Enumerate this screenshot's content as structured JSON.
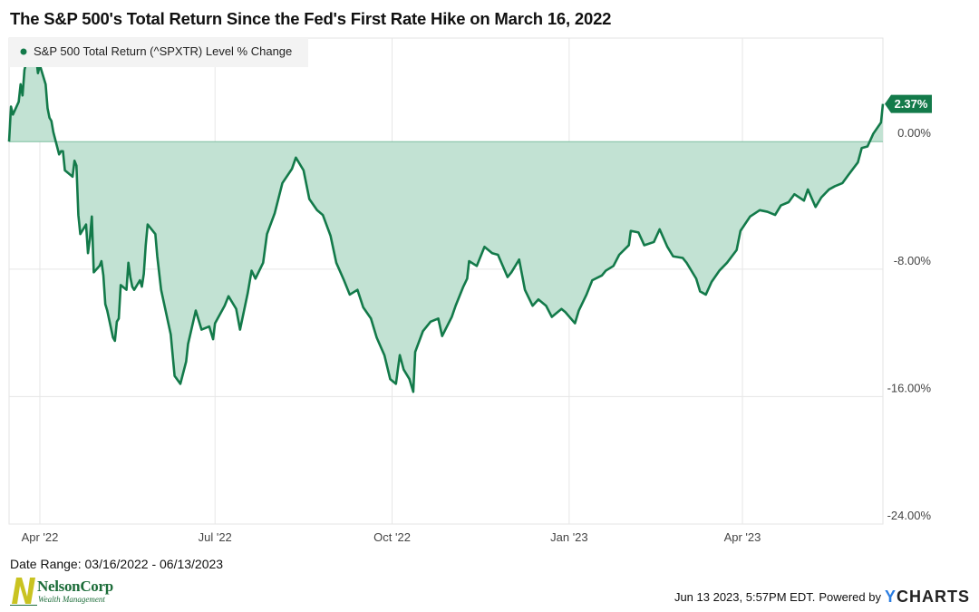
{
  "title": "The S&P 500's Total Return Since the Fed's First Rate Hike on March 16, 2022",
  "footer": {
    "date_range": "Date Range: 03/16/2022 - 06/13/2023",
    "timestamp": "Jun 13 2023, 5:57PM EDT.",
    "powered_by": "Powered by",
    "brand_y": "Y",
    "brand_rest": "CHARTS"
  },
  "logo": {
    "name": "NelsonCorp",
    "subtitle": "Wealth Management"
  },
  "colors": {
    "line": "#137a4a",
    "fill": "#c2e2d3",
    "grid": "#e6e6e6",
    "badge": "#137a4a"
  },
  "chart_data": {
    "type": "area",
    "title": "The S&P 500's Total Return Since the Fed's First Rate Hike on March 16, 2022",
    "series": [
      {
        "name": "S&P 500 Total Return (^SPXTR) Level % Change",
        "x": [
          "2022-03-16",
          "2022-03-17",
          "2022-03-18",
          "2022-03-21",
          "2022-03-22",
          "2022-03-23",
          "2022-03-24",
          "2022-03-25",
          "2022-03-28",
          "2022-03-29",
          "2022-03-30",
          "2022-03-31",
          "2022-04-01",
          "2022-04-04",
          "2022-04-05",
          "2022-04-06",
          "2022-04-07",
          "2022-04-08",
          "2022-04-11",
          "2022-04-12",
          "2022-04-13",
          "2022-04-14",
          "2022-04-18",
          "2022-04-19",
          "2022-04-20",
          "2022-04-21",
          "2022-04-22",
          "2022-04-25",
          "2022-04-26",
          "2022-04-27",
          "2022-04-28",
          "2022-04-29",
          "2022-05-02",
          "2022-05-03",
          "2022-05-04",
          "2022-05-05",
          "2022-05-06",
          "2022-05-09",
          "2022-05-10",
          "2022-05-11",
          "2022-05-12",
          "2022-05-13",
          "2022-05-16",
          "2022-05-17",
          "2022-05-18",
          "2022-05-19",
          "2022-05-20",
          "2022-05-23",
          "2022-05-24",
          "2022-05-25",
          "2022-05-26",
          "2022-05-27",
          "2022-05-31",
          "2022-06-01",
          "2022-06-03",
          "2022-06-08",
          "2022-06-10",
          "2022-06-13",
          "2022-06-16",
          "2022-06-17",
          "2022-06-21",
          "2022-06-24",
          "2022-06-28",
          "2022-06-30",
          "2022-07-01",
          "2022-07-06",
          "2022-07-08",
          "2022-07-12",
          "2022-07-14",
          "2022-07-18",
          "2022-07-20",
          "2022-07-22",
          "2022-07-26",
          "2022-07-28",
          "2022-08-01",
          "2022-08-05",
          "2022-08-10",
          "2022-08-12",
          "2022-08-16",
          "2022-08-19",
          "2022-08-23",
          "2022-08-26",
          "2022-08-30",
          "2022-09-02",
          "2022-09-06",
          "2022-09-09",
          "2022-09-13",
          "2022-09-16",
          "2022-09-20",
          "2022-09-23",
          "2022-09-27",
          "2022-09-30",
          "2022-10-03",
          "2022-10-05",
          "2022-10-07",
          "2022-10-10",
          "2022-10-12",
          "2022-10-13",
          "2022-10-17",
          "2022-10-21",
          "2022-10-25",
          "2022-10-27",
          "2022-11-01",
          "2022-11-03",
          "2022-11-07",
          "2022-11-09",
          "2022-11-10",
          "2022-11-14",
          "2022-11-18",
          "2022-11-22",
          "2022-11-25",
          "2022-11-30",
          "2022-12-02",
          "2022-12-06",
          "2022-12-09",
          "2022-12-13",
          "2022-12-16",
          "2022-12-20",
          "2022-12-23",
          "2022-12-28",
          "2022-12-30",
          "2023-01-04",
          "2023-01-06",
          "2023-01-10",
          "2023-01-13",
          "2023-01-18",
          "2023-01-20",
          "2023-01-24",
          "2023-01-27",
          "2023-02-01",
          "2023-02-02",
          "2023-02-06",
          "2023-02-09",
          "2023-02-14",
          "2023-02-17",
          "2023-02-21",
          "2023-02-24",
          "2023-03-01",
          "2023-03-03",
          "2023-03-08",
          "2023-03-10",
          "2023-03-13",
          "2023-03-16",
          "2023-03-20",
          "2023-03-24",
          "2023-03-29",
          "2023-03-31",
          "2023-04-05",
          "2023-04-10",
          "2023-04-14",
          "2023-04-18",
          "2023-04-21",
          "2023-04-25",
          "2023-04-28",
          "2023-05-03",
          "2023-05-05",
          "2023-05-09",
          "2023-05-12",
          "2023-05-16",
          "2023-05-19",
          "2023-05-23",
          "2023-05-26",
          "2023-05-31",
          "2023-06-02",
          "2023-06-05",
          "2023-06-08",
          "2023-06-12",
          "2023-06-13"
        ],
        "values": [
          0.0,
          2.2,
          1.7,
          2.5,
          3.6,
          2.9,
          4.5,
          5.0,
          5.6,
          6.4,
          5.4,
          4.3,
          4.8,
          3.6,
          2.1,
          1.5,
          1.3,
          0.6,
          -0.8,
          -0.6,
          -0.6,
          -1.8,
          -2.2,
          -1.2,
          -1.5,
          -4.6,
          -5.8,
          -5.2,
          -7.0,
          -6.1,
          -4.7,
          -8.2,
          -7.8,
          -7.5,
          -8.4,
          -10.2,
          -10.6,
          -12.3,
          -12.5,
          -11.3,
          -11.1,
          -9.0,
          -9.3,
          -7.6,
          -8.5,
          -9.1,
          -9.3,
          -8.7,
          -9.1,
          -8.3,
          -6.5,
          -5.2,
          -5.8,
          -7.2,
          -9.3,
          -12.1,
          -14.7,
          -15.2,
          -13.8,
          -12.7,
          -10.6,
          -11.8,
          -11.6,
          -12.4,
          -11.4,
          -10.3,
          -9.7,
          -10.5,
          -11.8,
          -9.5,
          -8.1,
          -8.6,
          -7.6,
          -5.8,
          -4.5,
          -2.6,
          -1.7,
          -1.0,
          -1.8,
          -3.6,
          -4.3,
          -4.6,
          -5.9,
          -7.6,
          -8.7,
          -9.6,
          -9.3,
          -10.4,
          -11.1,
          -12.3,
          -13.4,
          -14.9,
          -15.2,
          -13.4,
          -14.3,
          -14.9,
          -15.7,
          -13.2,
          -11.9,
          -11.3,
          -11.1,
          -12.2,
          -11.0,
          -10.3,
          -9.1,
          -8.6,
          -7.5,
          -7.8,
          -6.6,
          -7.0,
          -7.1,
          -8.5,
          -8.2,
          -7.4,
          -9.3,
          -10.3,
          -9.9,
          -10.3,
          -11.0,
          -10.5,
          -10.7,
          -11.4,
          -10.6,
          -9.6,
          -8.7,
          -8.4,
          -8.1,
          -7.8,
          -7.1,
          -6.5,
          -5.6,
          -5.7,
          -6.5,
          -6.3,
          -5.5,
          -6.6,
          -7.2,
          -7.3,
          -7.6,
          -8.6,
          -9.4,
          -9.6,
          -8.8,
          -8.1,
          -7.6,
          -6.8,
          -5.6,
          -4.7,
          -4.3,
          -4.4,
          -4.6,
          -4.0,
          -3.8,
          -3.3,
          -3.7,
          -3.0,
          -4.1,
          -3.5,
          -3.0,
          -2.8,
          -2.6,
          -2.1,
          -1.3,
          -0.4,
          -0.3,
          0.5,
          1.2,
          2.37
        ]
      }
    ],
    "legend_label": "S&P 500 Total Return (^SPXTR) Level % Change",
    "legend_position": "top-left",
    "last_value_label": "2.37%",
    "x_tick_labels": [
      "Apr '22",
      "Jul '22",
      "Oct '22",
      "Jan '23",
      "Apr '23"
    ],
    "x_tick_dates": [
      "2022-04-01",
      "2022-07-01",
      "2022-10-01",
      "2023-01-01",
      "2023-04-01"
    ],
    "y_tick_labels": [
      "0.00%",
      "-8.00%",
      "-16.00%",
      "-24.00%"
    ],
    "y_tick_values": [
      0,
      -8,
      -16,
      -24
    ],
    "ylim": [
      -24,
      6.5
    ],
    "xlim": [
      "2022-03-16",
      "2023-06-13"
    ],
    "grid": true,
    "y_axis_side": "right"
  }
}
